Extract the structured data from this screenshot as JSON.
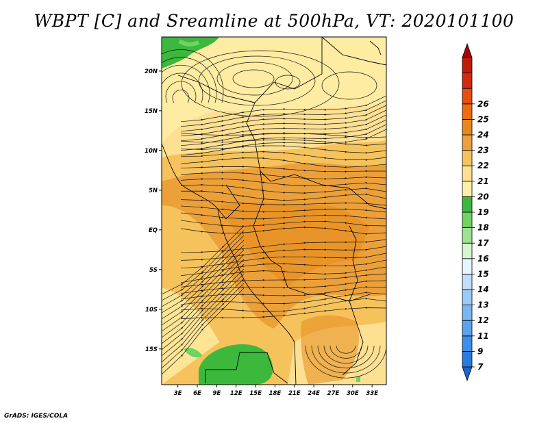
{
  "title": "WBPT [C] and Sreamline at 500hPa, VT: 2020101100",
  "footer": "GrADS: IGES/COLA",
  "chart_data": {
    "type": "heatmap",
    "title": "WBPT [C] and Sreamline at 500hPa, VT: 2020101100",
    "variable": "Wet-bulb potential temperature",
    "units": "C",
    "level": "500hPa",
    "valid_time": "2020101100",
    "overlay": "streamlines",
    "x_ticks": [
      "3E",
      "6E",
      "9E",
      "12E",
      "15E",
      "18E",
      "21E",
      "24E",
      "27E",
      "30E",
      "33E"
    ],
    "x_tick_values": [
      3,
      6,
      9,
      12,
      15,
      18,
      21,
      24,
      27,
      30,
      33
    ],
    "y_ticks": [
      "20N",
      "15N",
      "10N",
      "5N",
      "EQ",
      "5S",
      "10S",
      "15S"
    ],
    "y_tick_values": [
      20,
      15,
      10,
      5,
      0,
      -5,
      -10,
      -15
    ],
    "xlim": [
      0.5,
      35.2
    ],
    "ylim": [
      -19.5,
      24.3
    ],
    "colorbar": {
      "labels": [
        "7",
        "9",
        "11",
        "12",
        "13",
        "14",
        "15",
        "16",
        "17",
        "18",
        "19",
        "20",
        "21",
        "22",
        "23",
        "24",
        "25",
        "26"
      ],
      "colors": [
        "#1f64d0",
        "#2a7be0",
        "#3c8fea",
        "#5aa2ee",
        "#7ab7f2",
        "#9ccaf6",
        "#c2def9",
        "#e6f5ff",
        "#d4f5ce",
        "#9de28f",
        "#6fd464",
        "#3cb83c",
        "#fff0a8",
        "#fde092",
        "#f6c25c",
        "#eca03a",
        "#e58a1c",
        "#ef6b0e",
        "#e84e10",
        "#d42a0c",
        "#c01c0a",
        "#a40604"
      ]
    },
    "palette": {
      "land_green": "#3cb83c",
      "light_green": "#6fd464",
      "pale_yellow": "#fff0a8",
      "yellow": "#fde092",
      "light_orange": "#f6c25c",
      "orange": "#eca03a",
      "dark_orange": "#e58a1c"
    }
  }
}
